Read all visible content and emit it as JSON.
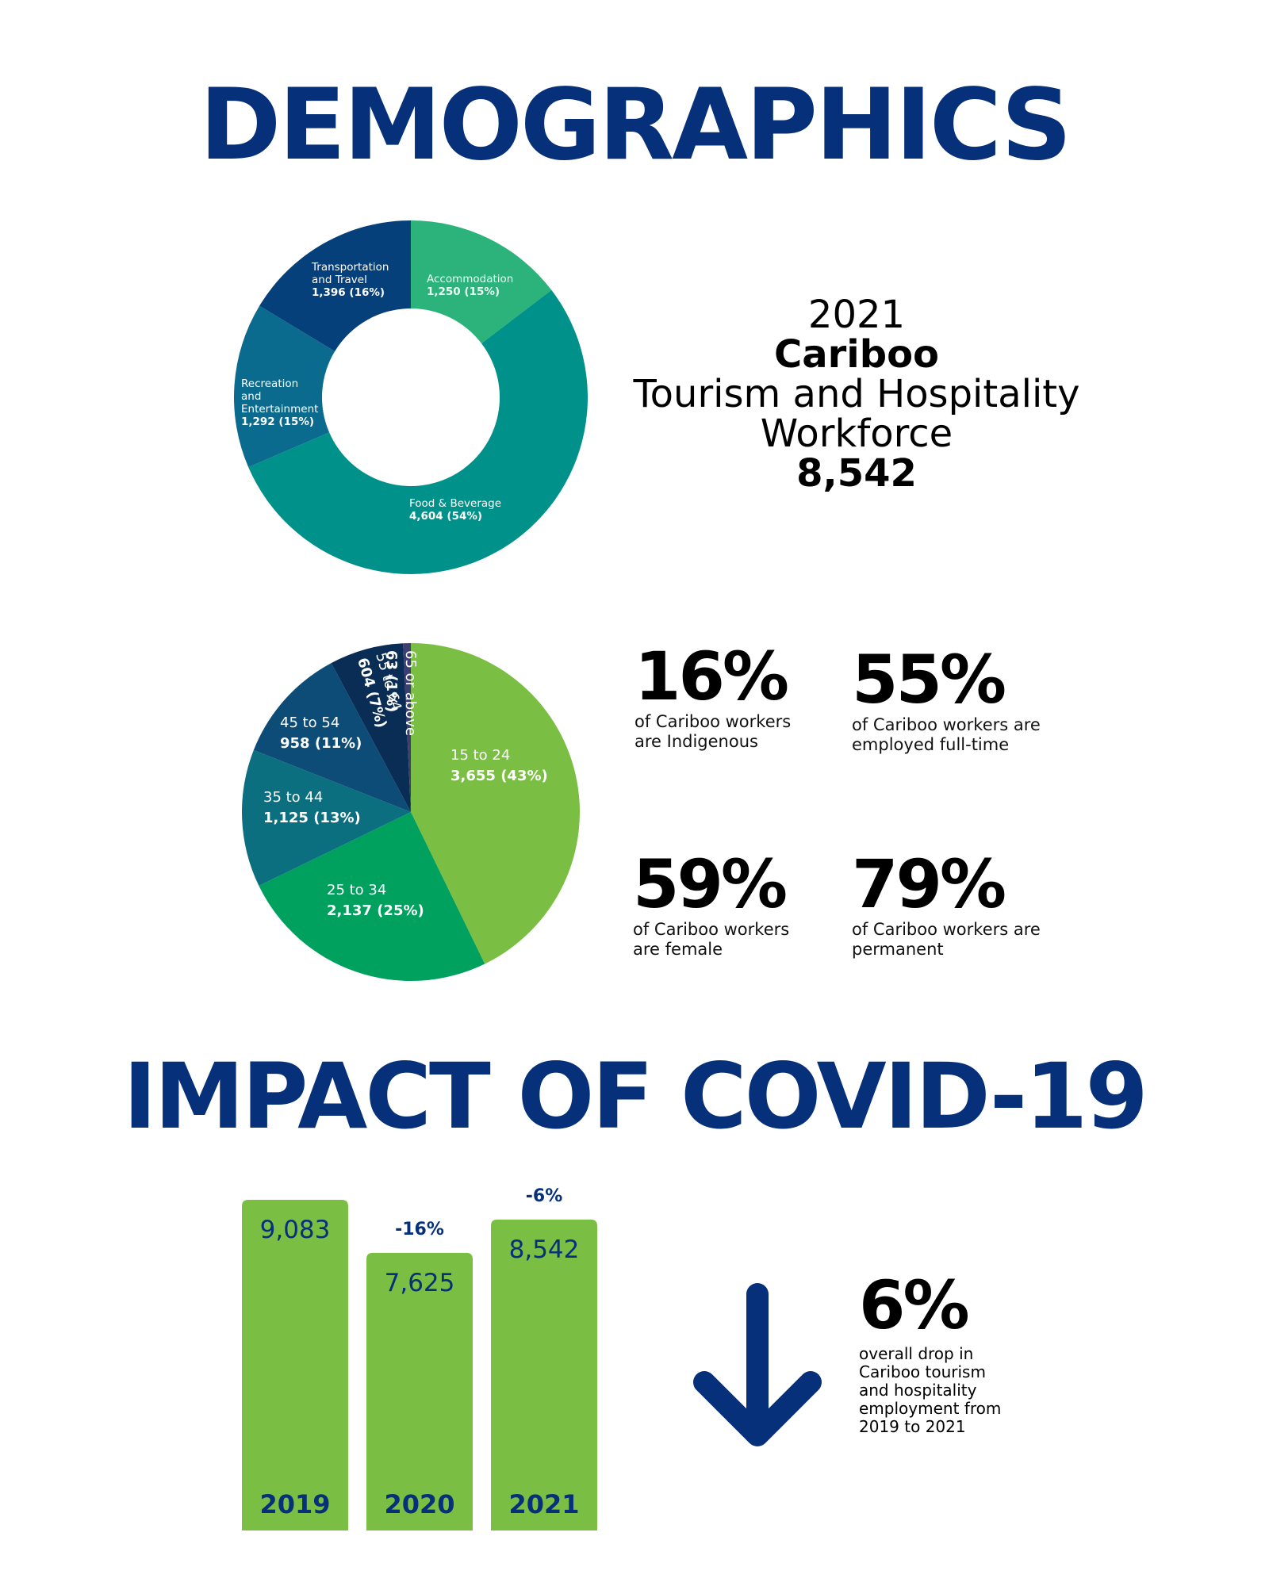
{
  "headings": {
    "demographics": "DEMOGRAPHICS",
    "covid": "IMPACT OF COVID-19"
  },
  "workforce": {
    "year": "2021",
    "region": "Cariboo",
    "label_line1": "Tourism and Hospitality",
    "label_line2": "Workforce",
    "total": "8,542"
  },
  "stats": [
    {
      "pct": "16%",
      "desc": "of Cariboo workers are Indigenous"
    },
    {
      "pct": "55%",
      "desc": "of Cariboo workers are employed full-time"
    },
    {
      "pct": "59%",
      "desc": "of Cariboo workers are female"
    },
    {
      "pct": "79%",
      "desc": "of Cariboo workers are permanent"
    }
  ],
  "drop": {
    "pct": "6%",
    "desc": "overall drop in Cariboo tourism and hospitality employment from 2019 to 2021"
  },
  "colors": {
    "navy": "#06307a",
    "bar_green": "#7abf43"
  },
  "chart_data": [
    {
      "type": "pie",
      "variant": "donut",
      "title": "",
      "slices": [
        {
          "label_lines": [
            "Accommodation"
          ],
          "value_text": "1,250 (15%)",
          "value": 1250,
          "color": "#2bb37b"
        },
        {
          "label_lines": [
            "Food & Beverage"
          ],
          "value_text": "4,604 (54%)",
          "value": 4604,
          "color": "#00918a"
        },
        {
          "label_lines": [
            "Recreation",
            "and",
            "Entertainment"
          ],
          "value_text": "1,292 (15%)",
          "value": 1292,
          "color": "#0b6b8e"
        },
        {
          "label_lines": [
            "Transportation",
            "and Travel"
          ],
          "value_text": "1,396 (16%)",
          "value": 1396,
          "color": "#06407a"
        }
      ]
    },
    {
      "type": "pie",
      "title": "",
      "slices": [
        {
          "label_lines": [
            "15 to 24"
          ],
          "value_text": "3,655 (43%)",
          "value": 3655,
          "color": "#7abf43"
        },
        {
          "label_lines": [
            "25 to 34"
          ],
          "value_text": "2,137 (25%)",
          "value": 2137,
          "color": "#00a05e"
        },
        {
          "label_lines": [
            "35 to 44"
          ],
          "value_text": "1,125 (13%)",
          "value": 1125,
          "color": "#0b6f80"
        },
        {
          "label_lines": [
            "45 to 54"
          ],
          "value_text": "958 (11%)",
          "value": 958,
          "color": "#0c4c77"
        },
        {
          "label_lines": [
            "55 to 64"
          ],
          "value_text": "604 (7%)",
          "value": 604,
          "color": "#0a2d55"
        },
        {
          "label_lines": [
            "65 or above"
          ],
          "value_text": "63 (1%)",
          "value": 63,
          "color": "#3d3f73"
        }
      ]
    },
    {
      "type": "bar",
      "title": "",
      "categories": [
        "2019",
        "2020",
        "2021"
      ],
      "values": [
        9083,
        7625,
        8542
      ],
      "value_labels": [
        "9,083",
        "7,625",
        "8,542"
      ],
      "change_labels": [
        "",
        "-16%",
        "-6%"
      ]
    }
  ]
}
